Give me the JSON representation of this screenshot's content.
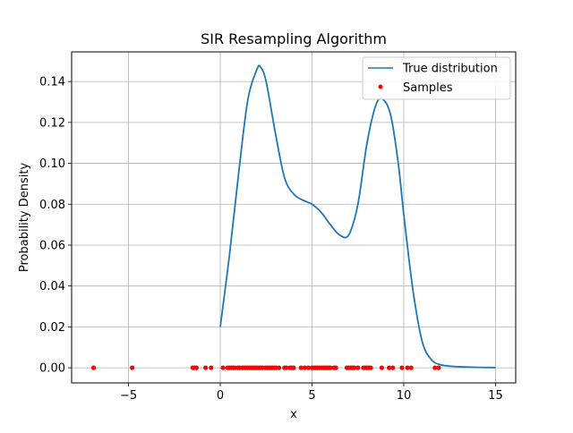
{
  "chart_data": {
    "type": "line",
    "title": "SIR Resampling Algorithm",
    "xlabel": "x",
    "ylabel": "Probability Density",
    "xlim": [
      -8.1,
      16.1
    ],
    "ylim": [
      -0.0074,
      0.1545
    ],
    "xticks": [
      -5,
      0,
      5,
      10,
      15
    ],
    "xtick_labels": [
      "−5",
      "0",
      "5",
      "10",
      "15"
    ],
    "yticks": [
      0.0,
      0.02,
      0.04,
      0.06,
      0.08,
      0.1,
      0.12,
      0.14
    ],
    "ytick_labels": [
      "0.00",
      "0.02",
      "0.04",
      "0.06",
      "0.08",
      "0.10",
      "0.12",
      "0.14"
    ],
    "grid": true,
    "legend_position": "top-right",
    "series": [
      {
        "name": "True distribution",
        "kind": "line",
        "color": "#1f77b4",
        "x": [
          0,
          0.5,
          1.0,
          1.5,
          2.0,
          2.2,
          2.5,
          3.0,
          3.5,
          4.0,
          4.5,
          5.0,
          5.5,
          6.0,
          6.5,
          7.0,
          7.5,
          8.0,
          8.5,
          8.9,
          9.3,
          9.7,
          10.0,
          10.5,
          11.0,
          11.5,
          12.0,
          12.5,
          13.0,
          14.0,
          15.0
        ],
        "y": [
          0.02,
          0.055,
          0.095,
          0.131,
          0.146,
          0.147,
          0.14,
          0.115,
          0.093,
          0.085,
          0.082,
          0.08,
          0.076,
          0.07,
          0.065,
          0.065,
          0.08,
          0.11,
          0.129,
          0.131,
          0.123,
          0.1,
          0.075,
          0.038,
          0.013,
          0.004,
          0.0015,
          0.0008,
          0.0005,
          0.0002,
          0.0001
        ]
      },
      {
        "name": "Samples",
        "kind": "scatter",
        "color": "#ff0000",
        "x": [
          -6.9,
          -4.8,
          -1.5,
          -1.4,
          -1.3,
          -0.8,
          -0.5,
          0.15,
          0.4,
          0.5,
          0.6,
          0.7,
          0.8,
          0.95,
          1.05,
          1.2,
          1.3,
          1.4,
          1.5,
          1.6,
          1.7,
          1.8,
          1.9,
          2.0,
          2.1,
          2.2,
          2.3,
          2.45,
          2.55,
          2.65,
          2.75,
          2.85,
          2.95,
          3.05,
          3.2,
          3.5,
          3.6,
          3.8,
          3.9,
          4.0,
          4.4,
          4.6,
          4.8,
          5.0,
          5.1,
          5.2,
          5.3,
          5.4,
          5.5,
          5.6,
          5.7,
          5.8,
          5.9,
          6.0,
          6.2,
          6.3,
          6.9,
          7.0,
          7.1,
          7.2,
          7.3,
          7.5,
          7.8,
          7.9,
          8.0,
          8.1,
          8.2,
          8.8,
          9.2,
          9.4,
          9.9,
          10.2,
          10.4,
          11.7,
          11.9
        ],
        "y": [
          0,
          0,
          0,
          0,
          0,
          0,
          0,
          0,
          0,
          0,
          0,
          0,
          0,
          0,
          0,
          0,
          0,
          0,
          0,
          0,
          0,
          0,
          0,
          0,
          0,
          0,
          0,
          0,
          0,
          0,
          0,
          0,
          0,
          0,
          0,
          0,
          0,
          0,
          0,
          0,
          0,
          0,
          0,
          0,
          0,
          0,
          0,
          0,
          0,
          0,
          0,
          0,
          0,
          0,
          0,
          0,
          0,
          0,
          0,
          0,
          0,
          0,
          0,
          0,
          0,
          0,
          0,
          0,
          0,
          0,
          0,
          0,
          0,
          0,
          0
        ]
      }
    ]
  }
}
